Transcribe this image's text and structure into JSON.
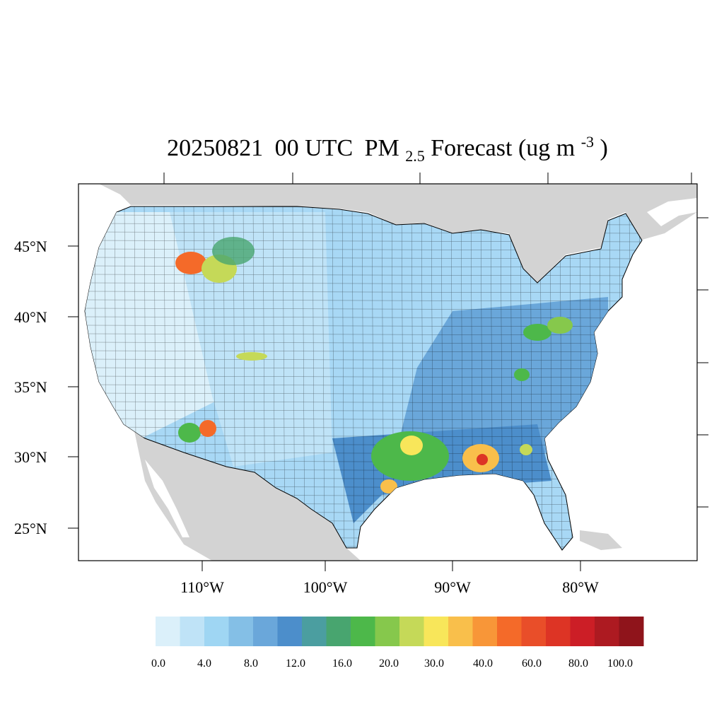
{
  "title": {
    "date": "20250821",
    "hour": "00 UTC",
    "pm": "PM",
    "pm_sub": "2.5",
    "rest": " Forecast (ug m",
    "exp": "-3",
    "close": ")"
  },
  "axes": {
    "lat_labels": [
      "25°N",
      "30°N",
      "35°N",
      "40°N",
      "45°N"
    ],
    "lon_labels": [
      "110°W",
      "100°W",
      "90°W",
      "80°W"
    ]
  },
  "colorbar": {
    "colors": [
      "#dbf0fa",
      "#bfe3f7",
      "#9fd6f3",
      "#84bfe6",
      "#6aa7da",
      "#4c8ecb",
      "#4b9ea0",
      "#48a56f",
      "#4db84a",
      "#86c84c",
      "#c5d958",
      "#f8e65a",
      "#f9bf4b",
      "#f89638",
      "#f46a29",
      "#e94e29",
      "#dd3425",
      "#cc1e26",
      "#ad1a21",
      "#8f141b"
    ],
    "tick_labels": [
      "0.0",
      "4.0",
      "8.0",
      "12.0",
      "16.0",
      "20.0",
      "30.0",
      "40.0",
      "60.0",
      "80.0",
      "100.0"
    ]
  },
  "map": {
    "land_color": "#d3d3d3",
    "water_color": "#ffffff",
    "base_fill": "#a8d8f5"
  }
}
